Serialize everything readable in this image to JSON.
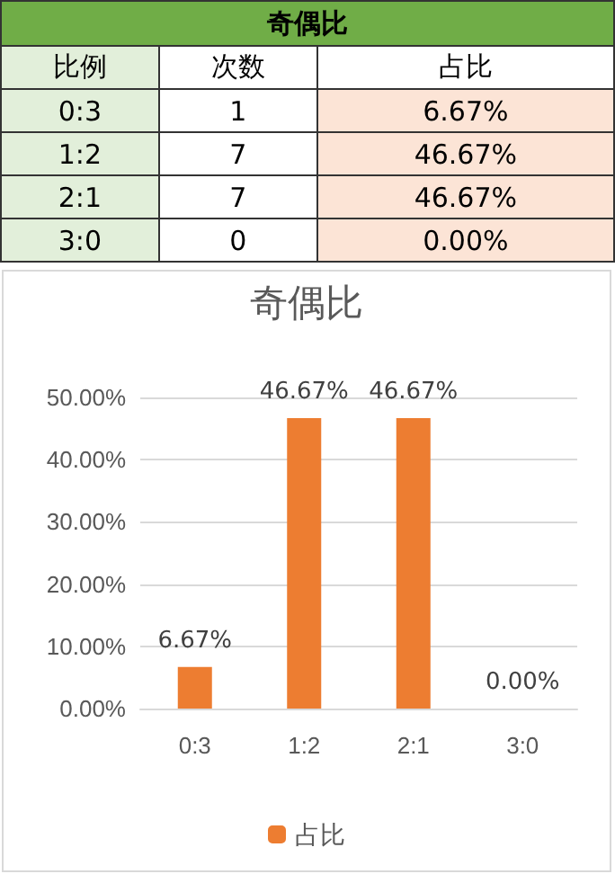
{
  "chart_data": [
    {
      "type": "other",
      "title": "奇偶比",
      "annotations": [
        "比例",
        "次数",
        "占比",
        "0:3",
        "1",
        "6.67%",
        "1:2",
        "7",
        "46.67%",
        "2:1",
        "7",
        "46.67%",
        "3:0",
        "0",
        "0.00%"
      ]
    },
    {
      "type": "bar",
      "title": "奇偶比",
      "categories": [
        "0:3",
        "1:2",
        "2:1",
        "3:0"
      ],
      "series": [
        {
          "name": "占比",
          "color": "#ed7d31",
          "values": [
            6.67,
            46.67,
            46.67,
            0
          ],
          "value_labels": [
            "6.67%",
            "46.67%",
            "46.67%",
            "0.00%"
          ]
        }
      ],
      "ylim": [
        0,
        50
      ],
      "yticks": [
        {
          "value": 0,
          "label": "0.00%"
        },
        {
          "value": 10,
          "label": "10.00%"
        },
        {
          "value": 20,
          "label": "20.00%"
        },
        {
          "value": 30,
          "label": "30.00%"
        },
        {
          "value": 40,
          "label": "40.00%"
        },
        {
          "value": 50,
          "label": "50.00%"
        }
      ],
      "grid": "y",
      "legend": "bottom"
    }
  ]
}
